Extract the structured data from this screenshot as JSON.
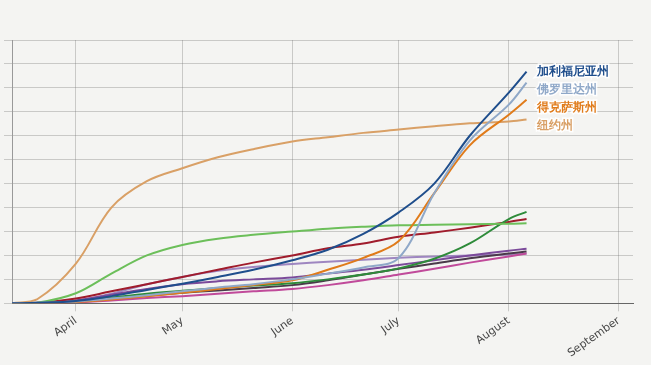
{
  "chart_data": {
    "type": "line",
    "x": [
      13,
      20,
      31,
      41,
      51,
      61,
      71,
      81,
      92,
      102,
      112,
      122,
      132,
      142,
      153,
      158
    ],
    "xlim": [
      13,
      188
    ],
    "xticks": [
      {
        "value": 31,
        "label": "April"
      },
      {
        "value": 61,
        "label": "May"
      },
      {
        "value": 92,
        "label": "June"
      },
      {
        "value": 122,
        "label": "July"
      },
      {
        "value": 153,
        "label": "August"
      },
      {
        "value": 184,
        "label": "September"
      }
    ],
    "ylim": [
      0,
      550
    ],
    "yticks": [
      0,
      50,
      100,
      150,
      200,
      250,
      300,
      350,
      400,
      450,
      500,
      550
    ],
    "grid": true,
    "tick_labels": "x",
    "series": [
      {
        "name": "加利福尼亚州",
        "color": "#1f4e8c",
        "values": [
          0,
          1,
          5,
          15,
          28,
          41,
          55,
          70,
          90,
          112,
          145,
          190,
          250,
          350,
          440,
          484
        ]
      },
      {
        "name": "佛罗里达州",
        "color": "#8fa8c8",
        "values": [
          0,
          1,
          4,
          10,
          17,
          25,
          33,
          40,
          50,
          62,
          75,
          95,
          230,
          340,
          415,
          461
        ]
      },
      {
        "name": "得克萨斯州",
        "color": "#e07b1a",
        "values": [
          0,
          0,
          3,
          8,
          15,
          22,
          30,
          38,
          48,
          70,
          95,
          130,
          230,
          330,
          394,
          425
        ]
      },
      {
        "name": "纽约州",
        "color": "#d9a066",
        "values": [
          0,
          8,
          83,
          200,
          255,
          282,
          305,
          322,
          338,
          347,
          356,
          363,
          370,
          376,
          380,
          384
        ]
      },
      {
        "color": "#6cbf5a",
        "values": [
          0,
          1,
          21,
          62,
          100,
          122,
          135,
          143,
          150,
          156,
          160,
          163,
          164,
          165,
          166,
          167
        ]
      },
      {
        "color": "#2e8b3a",
        "values": [
          0,
          0,
          4,
          12,
          20,
          26,
          32,
          37,
          42,
          50,
          60,
          73,
          93,
          125,
          176,
          191
        ]
      },
      {
        "color": "#a01c2c",
        "values": [
          0,
          1,
          10,
          25,
          40,
          55,
          70,
          85,
          100,
          115,
          125,
          139,
          148,
          158,
          170,
          176
        ]
      },
      {
        "color": "#7b4a9a",
        "values": [
          0,
          0,
          6,
          18,
          30,
          40,
          46,
          50,
          54,
          62,
          70,
          80,
          90,
          100,
          110,
          114
        ]
      },
      {
        "color": "#c04a9a",
        "values": [
          0,
          0,
          2,
          6,
          11,
          15,
          20,
          25,
          30,
          38,
          48,
          60,
          72,
          85,
          98,
          104
        ]
      },
      {
        "color": "#4a3a4a",
        "values": [
          0,
          0,
          3,
          9,
          16,
          22,
          27,
          32,
          38,
          48,
          60,
          72,
          83,
          94,
          104,
          108
        ]
      },
      {
        "color": "#9e86c0",
        "values": [
          0,
          0,
          5,
          20,
          40,
          55,
          68,
          76,
          82,
          87,
          91,
          95,
          98,
          100,
          102,
          104
        ]
      }
    ]
  }
}
